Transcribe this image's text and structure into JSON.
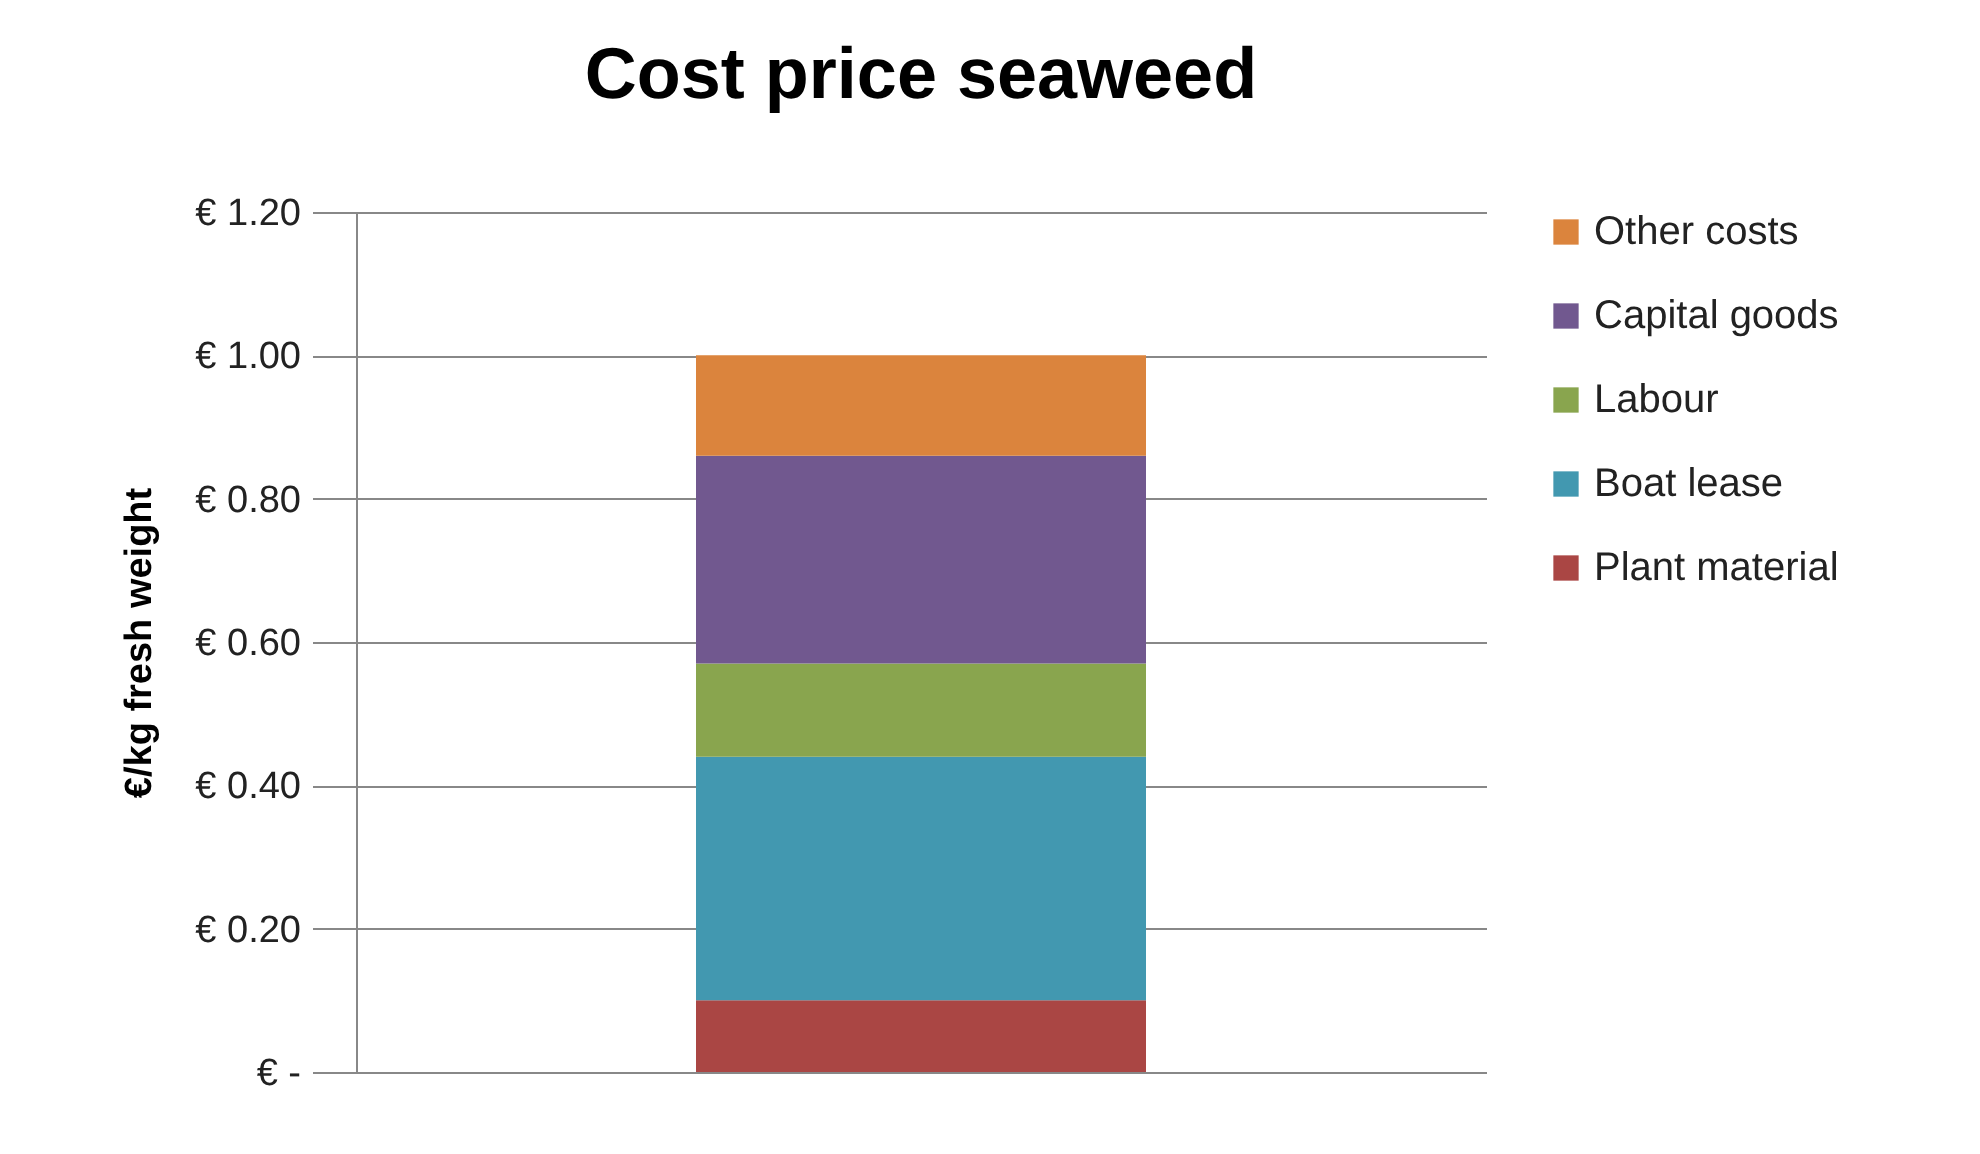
{
  "chart_data": {
    "type": "bar",
    "title": "Cost price seaweed",
    "ylabel": "€/kg fresh weight",
    "categories": [
      null
    ],
    "stacked": true,
    "series": [
      {
        "name": "Plant material",
        "color": "#aa4644",
        "values": [
          0.1
        ]
      },
      {
        "name": "Boat lease",
        "color": "#4298b0",
        "values": [
          0.34
        ]
      },
      {
        "name": "Labour",
        "color": "#89a54e",
        "values": [
          0.13
        ]
      },
      {
        "name": "Capital goods",
        "color": "#71588f",
        "values": [
          0.29
        ]
      },
      {
        "name": "Other costs",
        "color": "#db843d",
        "values": [
          0.14
        ]
      }
    ],
    "ylim": [
      0,
      1.2
    ],
    "yticks": [
      {
        "value": 0,
        "label": "€ -"
      },
      {
        "value": 0.2,
        "label": "€ 0.20"
      },
      {
        "value": 0.4,
        "label": "€ 0.40"
      },
      {
        "value": 0.6,
        "label": "€ 0.60"
      },
      {
        "value": 0.8,
        "label": "€ 0.80"
      },
      {
        "value": 1.0,
        "label": "€ 1.00"
      },
      {
        "value": 1.2,
        "label": "€ 1.20"
      }
    ],
    "grid": "y",
    "legend": "right",
    "tick_labels": "y"
  }
}
